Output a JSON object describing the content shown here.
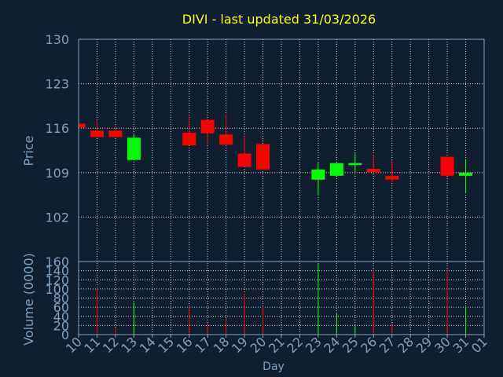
{
  "title": "DIVI - last updated 31/03/2026",
  "colors": {
    "background": "#0f1f2f",
    "axis_text": "#7f9fbf",
    "title": "#ffff00",
    "grid": "#ffffff",
    "up": "#00ff00",
    "down": "#ff0000",
    "frame": "#7f9fbf"
  },
  "chart_data": [
    {
      "type": "candlestick",
      "ylabel": "Price",
      "ylim": [
        95,
        130
      ],
      "yticks": [
        102,
        109,
        116,
        123,
        130
      ],
      "x_labels": [
        "10",
        "11",
        "12",
        "13",
        "14",
        "15",
        "16",
        "17",
        "18",
        "19",
        "20",
        "21",
        "22",
        "23",
        "24",
        "25",
        "26",
        "27",
        "28",
        "29",
        "30",
        "31",
        "01"
      ],
      "candles": [
        {
          "day": "10",
          "open": 116.7,
          "high": 116.7,
          "low": 116.1,
          "close": 116.1
        },
        {
          "day": "11",
          "open": 115.6,
          "high": 117.3,
          "low": 114.5,
          "close": 114.6
        },
        {
          "day": "12",
          "open": 115.6,
          "high": 116.4,
          "low": 114.5,
          "close": 114.6
        },
        {
          "day": "13",
          "open": 111.0,
          "high": 115.0,
          "low": 111.0,
          "close": 114.5
        },
        {
          "day": "16",
          "open": 115.3,
          "high": 117.9,
          "low": 113.3,
          "close": 113.3
        },
        {
          "day": "17",
          "open": 117.3,
          "high": 117.3,
          "low": 113.5,
          "close": 115.2
        },
        {
          "day": "18",
          "open": 115.0,
          "high": 118.2,
          "low": 113.4,
          "close": 113.4
        },
        {
          "day": "19",
          "open": 112.0,
          "high": 114.9,
          "low": 109.9,
          "close": 109.9
        },
        {
          "day": "20",
          "open": 113.5,
          "high": 113.5,
          "low": 109.5,
          "close": 109.5
        },
        {
          "day": "23",
          "open": 107.9,
          "high": 110.7,
          "low": 105.4,
          "close": 109.5
        },
        {
          "day": "24",
          "open": 108.5,
          "high": 110.5,
          "low": 108.5,
          "close": 110.5
        },
        {
          "day": "25",
          "open": 110.2,
          "high": 112.0,
          "low": 109.0,
          "close": 110.5
        },
        {
          "day": "26",
          "open": 109.6,
          "high": 111.8,
          "low": 109.0,
          "close": 109.1
        },
        {
          "day": "27",
          "open": 108.5,
          "high": 111.0,
          "low": 107.5,
          "close": 107.9
        },
        {
          "day": "30",
          "open": 111.5,
          "high": 111.5,
          "low": 108.5,
          "close": 108.5
        },
        {
          "day": "31",
          "open": 108.5,
          "high": 111.0,
          "low": 105.8,
          "close": 109.0
        }
      ]
    },
    {
      "type": "bar",
      "ylabel": "Volume (0000)",
      "xlabel": "Day",
      "ylim": [
        0,
        160
      ],
      "yticks": [
        0,
        20,
        40,
        60,
        80,
        100,
        120,
        140,
        160
      ],
      "bars": [
        {
          "day": "10",
          "value": 0,
          "direction": "down"
        },
        {
          "day": "11",
          "value": 100,
          "direction": "down"
        },
        {
          "day": "12",
          "value": 15,
          "direction": "down"
        },
        {
          "day": "13",
          "value": 70,
          "direction": "up"
        },
        {
          "day": "16",
          "value": 60,
          "direction": "down"
        },
        {
          "day": "17",
          "value": 25,
          "direction": "down"
        },
        {
          "day": "18",
          "value": 35,
          "direction": "down"
        },
        {
          "day": "19",
          "value": 90,
          "direction": "down"
        },
        {
          "day": "20",
          "value": 60,
          "direction": "down"
        },
        {
          "day": "23",
          "value": 155,
          "direction": "up"
        },
        {
          "day": "24",
          "value": 48,
          "direction": "up"
        },
        {
          "day": "25",
          "value": 20,
          "direction": "up"
        },
        {
          "day": "26",
          "value": 143,
          "direction": "down"
        },
        {
          "day": "27",
          "value": 25,
          "direction": "down"
        },
        {
          "day": "30",
          "value": 143,
          "direction": "down"
        },
        {
          "day": "31",
          "value": 60,
          "direction": "up"
        }
      ]
    }
  ]
}
